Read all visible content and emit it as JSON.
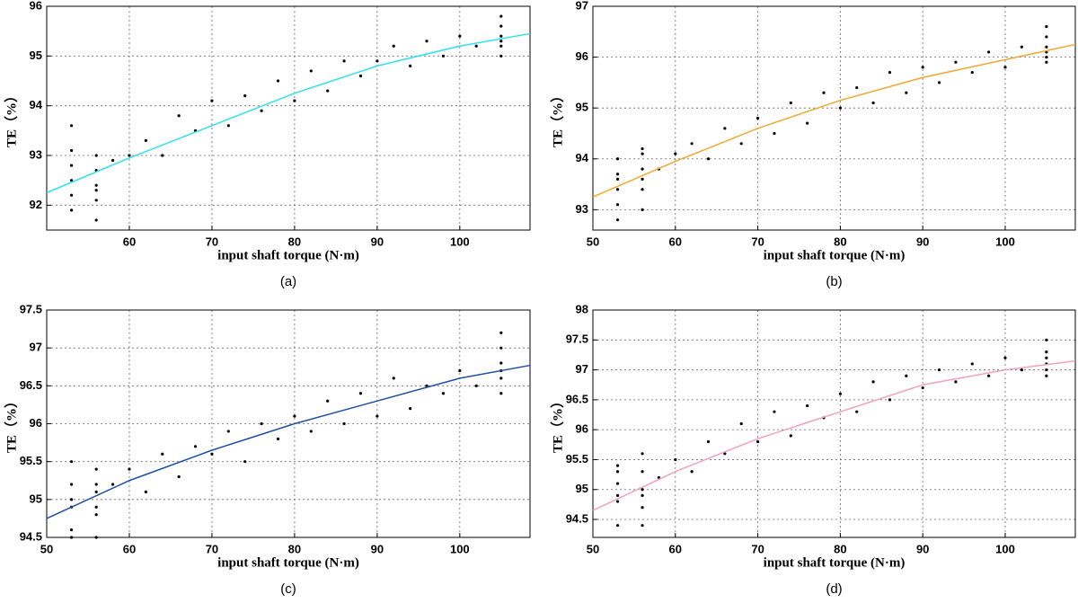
{
  "chart_data": [
    {
      "type": "scatter",
      "caption": "(a)",
      "xlabel": "input shaft torque (N·m)",
      "ylabel": "TE（%）",
      "xlim": [
        50,
        108.5
      ],
      "ylim": [
        91.5,
        96
      ],
      "xticks": [
        60,
        70,
        80,
        90,
        100
      ],
      "yticks": [
        92,
        93,
        94,
        95,
        96
      ],
      "grid": true,
      "points": {
        "color": "#000000",
        "x": [
          53,
          53,
          53,
          53,
          53,
          53,
          56,
          56,
          56,
          56,
          56,
          56,
          58,
          60,
          62,
          64,
          66,
          68,
          70,
          72,
          74,
          76,
          78,
          80,
          82,
          84,
          86,
          88,
          90,
          92,
          94,
          96,
          98,
          100,
          102,
          105,
          105,
          105,
          105,
          105,
          105
        ],
        "y": [
          92.2,
          92.5,
          92.8,
          93.1,
          93.6,
          91.9,
          91.7,
          92.1,
          92.4,
          92.7,
          93.0,
          92.3,
          92.9,
          93.0,
          93.3,
          93.0,
          93.8,
          93.5,
          94.1,
          93.6,
          94.2,
          93.9,
          94.5,
          94.1,
          94.7,
          94.3,
          94.9,
          94.6,
          94.9,
          95.2,
          94.8,
          95.3,
          95.0,
          95.4,
          95.2,
          95.0,
          95.2,
          95.4,
          95.6,
          95.8,
          95.3
        ]
      },
      "fit": {
        "color": "#2fe0ee",
        "x": [
          50,
          60,
          70,
          80,
          90,
          100,
          108.5
        ],
        "y": [
          92.25,
          92.95,
          93.6,
          94.25,
          94.8,
          95.2,
          95.45
        ]
      }
    },
    {
      "type": "scatter",
      "caption": "(b)",
      "xlabel": "input shaft torque (N·m)",
      "ylabel": "TE（%）",
      "xlim": [
        50,
        108.5
      ],
      "ylim": [
        92.6,
        97
      ],
      "xticks": [
        50,
        60,
        70,
        80,
        90,
        100
      ],
      "yticks": [
        93,
        94,
        95,
        96,
        97
      ],
      "grid": true,
      "points": {
        "color": "#000000",
        "x": [
          53,
          53,
          53,
          53,
          53,
          53,
          56,
          56,
          56,
          56,
          56,
          56,
          58,
          60,
          62,
          64,
          66,
          68,
          70,
          72,
          74,
          76,
          78,
          80,
          82,
          84,
          86,
          88,
          90,
          92,
          94,
          96,
          98,
          100,
          102,
          105,
          105,
          105,
          105,
          105,
          105
        ],
        "y": [
          93.1,
          93.4,
          93.7,
          94.0,
          93.6,
          92.8,
          93.0,
          93.4,
          93.8,
          94.1,
          93.6,
          94.2,
          93.8,
          94.1,
          94.3,
          94.0,
          94.6,
          94.3,
          94.8,
          94.5,
          95.1,
          94.7,
          95.3,
          95.0,
          95.4,
          95.1,
          95.7,
          95.3,
          95.8,
          95.5,
          95.9,
          95.7,
          96.1,
          95.8,
          96.2,
          95.9,
          96.0,
          96.1,
          96.2,
          96.4,
          96.6
        ]
      },
      "fit": {
        "color": "#f0a830",
        "x": [
          50,
          60,
          70,
          80,
          90,
          100,
          108.5
        ],
        "y": [
          93.25,
          93.95,
          94.6,
          95.15,
          95.6,
          95.95,
          96.25
        ]
      }
    },
    {
      "type": "scatter",
      "caption": "(c)",
      "xlabel": "input shaft torque (N·m)",
      "ylabel": "TE（%）",
      "xlim": [
        50,
        108.5
      ],
      "ylim": [
        94.5,
        97.5
      ],
      "xticks": [
        50,
        60,
        70,
        80,
        90,
        100
      ],
      "yticks": [
        94.5,
        95,
        95.5,
        96,
        96.5,
        97,
        97.5
      ],
      "grid": true,
      "points": {
        "color": "#000000",
        "x": [
          53,
          53,
          53,
          53,
          53,
          53,
          56,
          56,
          56,
          56,
          56,
          56,
          58,
          60,
          62,
          64,
          66,
          68,
          70,
          72,
          74,
          76,
          78,
          80,
          82,
          84,
          86,
          88,
          90,
          92,
          94,
          96,
          98,
          100,
          102,
          105,
          105,
          105,
          105,
          105,
          105
        ],
        "y": [
          94.6,
          94.9,
          95.2,
          95.5,
          95.0,
          94.5,
          94.5,
          94.8,
          95.1,
          95.4,
          94.9,
          95.2,
          95.2,
          95.4,
          95.1,
          95.6,
          95.3,
          95.7,
          95.6,
          95.9,
          95.5,
          96.0,
          95.8,
          96.1,
          95.9,
          96.3,
          96.0,
          96.4,
          96.1,
          96.6,
          96.2,
          96.5,
          96.4,
          96.7,
          96.5,
          96.4,
          96.6,
          96.8,
          97.0,
          97.2,
          96.7
        ]
      },
      "fit": {
        "color": "#1f4fa0",
        "x": [
          50,
          60,
          70,
          80,
          90,
          100,
          108.5
        ],
        "y": [
          94.75,
          95.25,
          95.65,
          96.0,
          96.3,
          96.6,
          96.77
        ]
      }
    },
    {
      "type": "scatter",
      "caption": "(d)",
      "xlabel": "input shaft torque (N·m)",
      "ylabel": "TE（%）",
      "xlim": [
        50,
        108.5
      ],
      "ylim": [
        94.2,
        98
      ],
      "xticks": [
        50,
        60,
        70,
        80,
        90,
        100
      ],
      "yticks": [
        94.5,
        95,
        95.5,
        96,
        96.5,
        97,
        97.5,
        98
      ],
      "grid": true,
      "points": {
        "color": "#000000",
        "x": [
          53,
          53,
          53,
          53,
          53,
          53,
          56,
          56,
          56,
          56,
          56,
          56,
          58,
          60,
          62,
          64,
          66,
          68,
          70,
          72,
          74,
          76,
          78,
          80,
          82,
          84,
          86,
          88,
          90,
          92,
          94,
          96,
          98,
          100,
          102,
          105,
          105,
          105,
          105,
          105,
          105
        ],
        "y": [
          94.4,
          94.8,
          95.1,
          95.4,
          94.9,
          95.3,
          94.4,
          94.7,
          95.0,
          95.3,
          95.6,
          94.9,
          95.2,
          95.5,
          95.3,
          95.8,
          95.6,
          96.1,
          95.8,
          96.3,
          95.9,
          96.4,
          96.2,
          96.6,
          96.3,
          96.8,
          96.5,
          96.9,
          96.7,
          97.0,
          96.8,
          97.1,
          96.9,
          97.2,
          97.0,
          96.9,
          97.0,
          97.1,
          97.3,
          97.5,
          97.2
        ]
      },
      "fit": {
        "color": "#f2a0c0",
        "x": [
          50,
          60,
          70,
          80,
          90,
          100,
          108.5
        ],
        "y": [
          94.65,
          95.3,
          95.85,
          96.3,
          96.75,
          97.0,
          97.15
        ]
      }
    }
  ]
}
